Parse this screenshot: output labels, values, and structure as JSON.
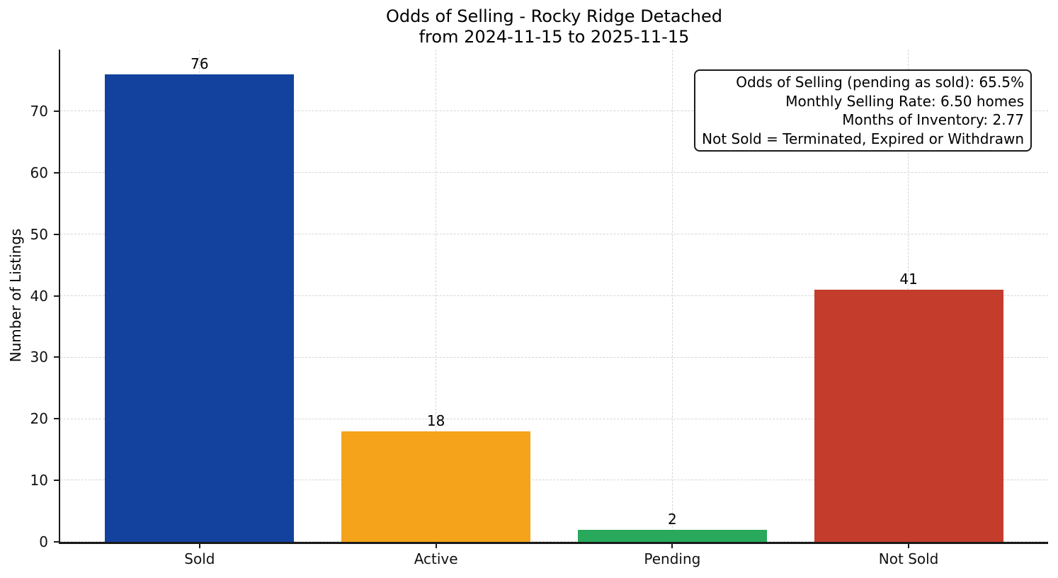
{
  "chart_data": {
    "type": "bar",
    "title": "Odds of Selling - Rocky Ridge Detached",
    "subtitle": "from 2024-11-15 to 2025-11-15",
    "ylabel": "Number of Listings",
    "xlabel": "",
    "categories": [
      "Sold",
      "Active",
      "Pending",
      "Not Sold"
    ],
    "values": [
      76,
      18,
      2,
      41
    ],
    "bar_colors": [
      "#12429d",
      "#f4a31a",
      "#28a95c",
      "#c43c2c"
    ],
    "yticks": [
      0,
      10,
      20,
      30,
      40,
      50,
      60,
      70
    ],
    "ylim": [
      0,
      80
    ],
    "bar_width_units": 0.8,
    "grid": "dashed, both axes, light gray",
    "legend_position": "none",
    "annotation": {
      "lines": [
        "Odds of Selling (pending as sold): 65.5%",
        "Monthly Selling Rate: 6.50 homes",
        "Months of Inventory: 2.77",
        "Not Sold = Terminated, Expired or Withdrawn"
      ],
      "stats": {
        "odds_of_selling_pending_as_sold_pct": 65.5,
        "monthly_selling_rate_homes": 6.5,
        "months_of_inventory": 2.77
      }
    }
  }
}
